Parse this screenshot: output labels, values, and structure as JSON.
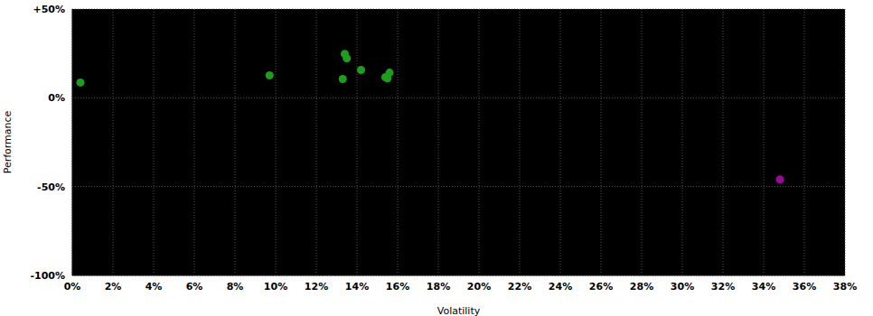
{
  "chart_data": {
    "type": "scatter",
    "x_label": "Volatility",
    "y_label": "Performance",
    "xlim": [
      0,
      38
    ],
    "ylim": [
      -100,
      50
    ],
    "xticks": [
      {
        "value": 0,
        "label": "0%"
      },
      {
        "value": 2,
        "label": "2%"
      },
      {
        "value": 4,
        "label": "4%"
      },
      {
        "value": 6,
        "label": "6%"
      },
      {
        "value": 8,
        "label": "8%"
      },
      {
        "value": 10,
        "label": "10%"
      },
      {
        "value": 12,
        "label": "12%"
      },
      {
        "value": 14,
        "label": "14%"
      },
      {
        "value": 16,
        "label": "16%"
      },
      {
        "value": 18,
        "label": "18%"
      },
      {
        "value": 20,
        "label": "20%"
      },
      {
        "value": 22,
        "label": "22%"
      },
      {
        "value": 24,
        "label": "24%"
      },
      {
        "value": 26,
        "label": "26%"
      },
      {
        "value": 28,
        "label": "28%"
      },
      {
        "value": 30,
        "label": "30%"
      },
      {
        "value": 32,
        "label": "32%"
      },
      {
        "value": 34,
        "label": "34%"
      },
      {
        "value": 36,
        "label": "36%"
      },
      {
        "value": 38,
        "label": "38%"
      }
    ],
    "yticks": [
      {
        "value": -100,
        "label": "-100%"
      },
      {
        "value": -50,
        "label": "-50%"
      },
      {
        "value": 0,
        "label": "0%"
      },
      {
        "value": 50,
        "label": "+50%"
      }
    ],
    "grid": true,
    "series": [
      {
        "color": "#1e9e1e",
        "marker": "circle",
        "x": [
          0.4,
          9.7,
          13.3,
          13.4,
          13.5,
          14.2,
          15.6,
          15.4,
          15.5
        ],
        "values": [
          8.6,
          12.6,
          10.6,
          24.7,
          22.2,
          15.7,
          14.1,
          11.6,
          11.0
        ]
      },
      {
        "color": "#9a0a9a",
        "marker": "circle",
        "x": [
          34.8
        ],
        "values": [
          -46
        ]
      }
    ]
  }
}
